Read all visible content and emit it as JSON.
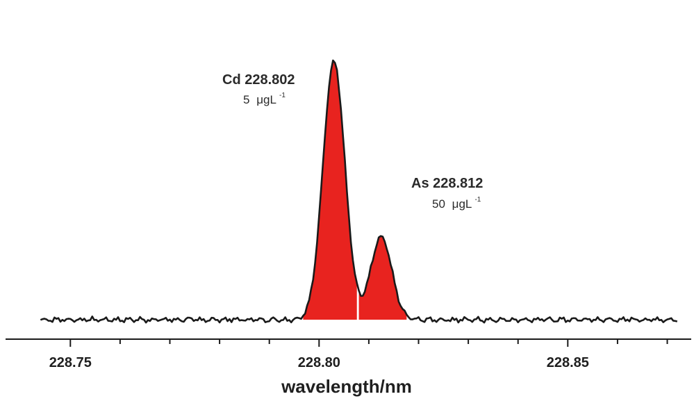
{
  "chart_data": {
    "type": "line",
    "xlabel": "wavelength/nm",
    "ylabel": "",
    "xlim": [
      228.742,
      228.873
    ],
    "ylim": [
      0,
      1
    ],
    "grid": false,
    "x_ticks_major": [
      228.75,
      228.8,
      228.85
    ],
    "x_tick_labels": [
      "228.75",
      "228.80",
      "228.85"
    ],
    "x_ticks_minor_step": 0.01,
    "baseline_noise": 0.012,
    "peaks": [
      {
        "element": "Cd",
        "label": "Cd 228.802",
        "concentration_value": "5",
        "concentration_unit": "μgL",
        "concentration_exponent": "-1",
        "center": 228.803,
        "height": 1.0,
        "width_sigma": 0.0022,
        "fill": "#e8231f"
      },
      {
        "element": "As",
        "label": "As 228.812",
        "concentration_value": "50",
        "concentration_unit": "μgL",
        "concentration_exponent": "-1",
        "center": 228.8125,
        "height": 0.32,
        "width_sigma": 0.0021,
        "fill": "#e8231f"
      }
    ],
    "line_color": "#1a1a1a"
  }
}
